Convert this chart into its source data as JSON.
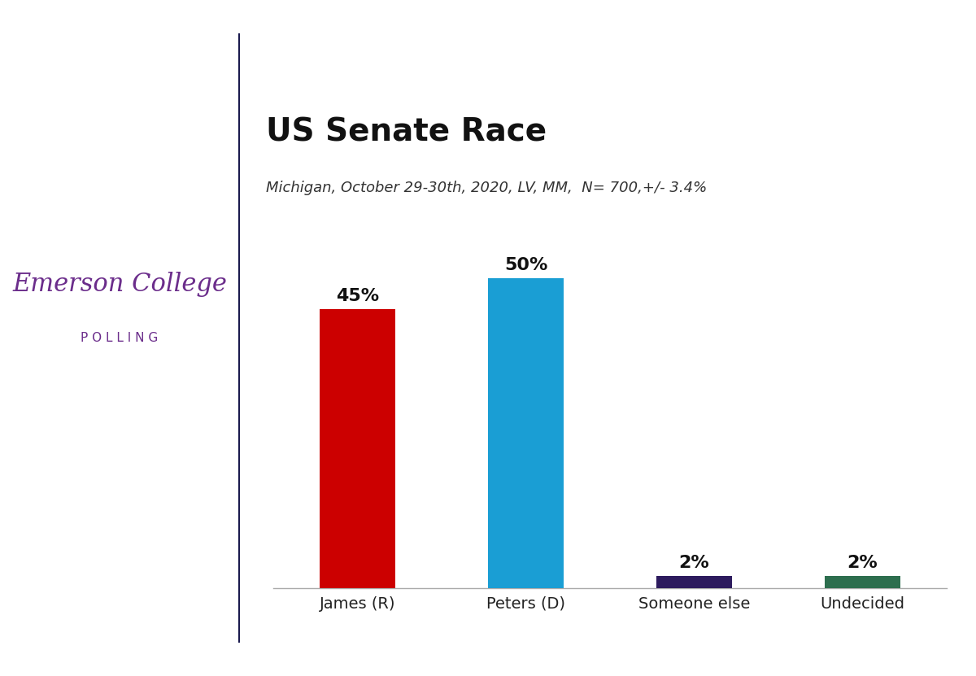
{
  "title": "US Senate Race",
  "subtitle": "Michigan, October 29-30th, 2020, LV, MM,  N= 700,+/- 3.4%",
  "categories": [
    "James (R)",
    "Peters (D)",
    "Someone else",
    "Undecided"
  ],
  "values": [
    45,
    50,
    2,
    2
  ],
  "bar_colors": [
    "#cc0000",
    "#1a9ed4",
    "#2d1b5e",
    "#2d6e4e"
  ],
  "label_texts": [
    "45%",
    "50%",
    "2%",
    "2%"
  ],
  "ylim": [
    0,
    60
  ],
  "background_color": "#ffffff",
  "header_bar_color": "#6b2d8b",
  "emerson_text": "Emerson College",
  "polling_text": "P O L L I N G",
  "emerson_color": "#6b2d8b",
  "title_fontsize": 28,
  "subtitle_fontsize": 13,
  "label_fontsize": 16,
  "xtick_fontsize": 14,
  "divider_color": "#1a1a4e"
}
